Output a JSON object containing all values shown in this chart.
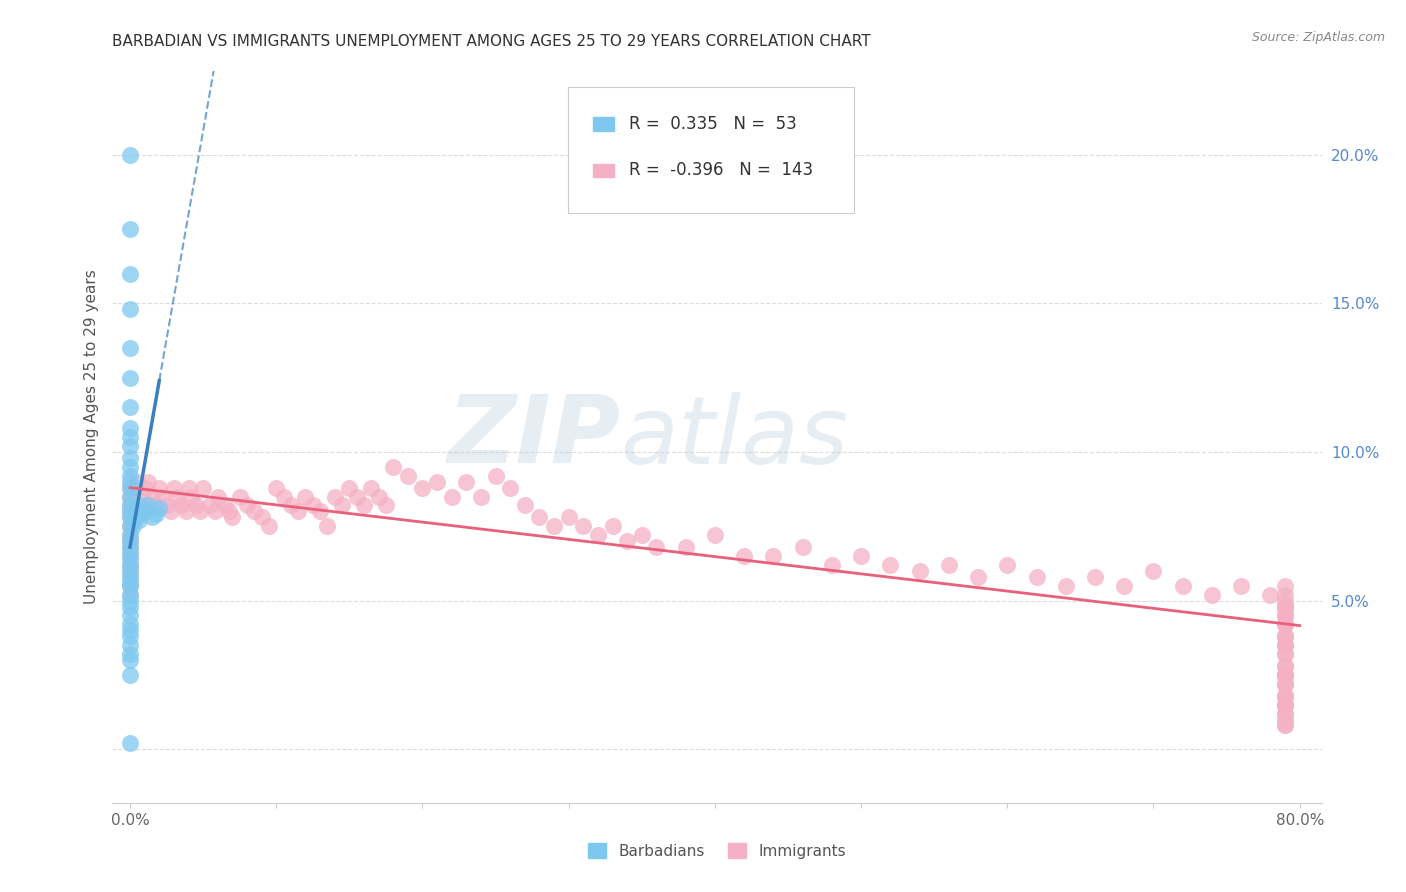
{
  "title": "BARBADIAN VS IMMIGRANTS UNEMPLOYMENT AMONG AGES 25 TO 29 YEARS CORRELATION CHART",
  "source": "Source: ZipAtlas.com",
  "ylabel": "Unemployment Among Ages 25 to 29 years",
  "legend_barbadians_R": "0.335",
  "legend_barbadians_N": "53",
  "legend_immigrants_R": "-0.396",
  "legend_immigrants_N": "143",
  "barbadian_color": "#7ec8f0",
  "immigrant_color": "#f5b0c5",
  "barbadian_line_color": "#3a7fbf",
  "immigrant_line_color": "#e8607a",
  "watermark_color": "#c5dff0",
  "watermark_text": "ZIPatlas",
  "barbadian_slope": 2.8,
  "barbadian_intercept": 0.068,
  "immigrant_slope": -0.058,
  "immigrant_intercept": 0.088,
  "bx": [
    0.0,
    0.0,
    0.0,
    0.0,
    0.0,
    0.0,
    0.0,
    0.0,
    0.0,
    0.0,
    0.0,
    0.0,
    0.0,
    0.0,
    0.0,
    0.0,
    0.0,
    0.0,
    0.0,
    0.0,
    0.0,
    0.0,
    0.0,
    0.0,
    0.0,
    0.0,
    0.0,
    0.0,
    0.0,
    0.0,
    0.0,
    0.0,
    0.0,
    0.0,
    0.0,
    0.0,
    0.0,
    0.0,
    0.0,
    0.0,
    0.0,
    0.0,
    0.002,
    0.004,
    0.005,
    0.006,
    0.007,
    0.008,
    0.01,
    0.012,
    0.015,
    0.018,
    0.02
  ],
  "by": [
    0.2,
    0.175,
    0.16,
    0.148,
    0.135,
    0.125,
    0.115,
    0.108,
    0.105,
    0.102,
    0.098,
    0.095,
    0.092,
    0.09,
    0.088,
    0.085,
    0.082,
    0.08,
    0.078,
    0.075,
    0.072,
    0.07,
    0.068,
    0.066,
    0.064,
    0.062,
    0.06,
    0.058,
    0.056,
    0.055,
    0.052,
    0.05,
    0.048,
    0.045,
    0.042,
    0.04,
    0.038,
    0.035,
    0.032,
    0.03,
    0.025,
    0.002,
    0.075,
    0.078,
    0.08,
    0.077,
    0.082,
    0.079,
    0.08,
    0.082,
    0.078,
    0.079,
    0.081
  ],
  "ix": [
    0.0,
    0.0,
    0.0,
    0.0,
    0.0,
    0.0,
    0.0,
    0.0,
    0.0,
    0.0,
    0.0,
    0.0,
    0.0,
    0.0,
    0.0,
    0.005,
    0.008,
    0.01,
    0.012,
    0.015,
    0.018,
    0.02,
    0.022,
    0.025,
    0.028,
    0.03,
    0.032,
    0.035,
    0.038,
    0.04,
    0.042,
    0.045,
    0.048,
    0.05,
    0.055,
    0.058,
    0.06,
    0.065,
    0.068,
    0.07,
    0.075,
    0.08,
    0.085,
    0.09,
    0.095,
    0.1,
    0.105,
    0.11,
    0.115,
    0.12,
    0.125,
    0.13,
    0.135,
    0.14,
    0.145,
    0.15,
    0.155,
    0.16,
    0.165,
    0.17,
    0.175,
    0.18,
    0.19,
    0.2,
    0.21,
    0.22,
    0.23,
    0.24,
    0.25,
    0.26,
    0.27,
    0.28,
    0.29,
    0.3,
    0.31,
    0.32,
    0.33,
    0.34,
    0.35,
    0.36,
    0.38,
    0.4,
    0.42,
    0.44,
    0.46,
    0.48,
    0.5,
    0.52,
    0.54,
    0.56,
    0.58,
    0.6,
    0.62,
    0.64,
    0.66,
    0.68,
    0.7,
    0.72,
    0.74,
    0.76,
    0.78,
    0.79,
    0.79,
    0.79,
    0.79,
    0.79,
    0.79,
    0.79,
    0.79,
    0.79,
    0.79,
    0.79,
    0.79,
    0.79,
    0.79,
    0.79,
    0.79,
    0.79,
    0.79,
    0.79,
    0.79,
    0.79,
    0.79,
    0.79,
    0.79,
    0.79,
    0.79,
    0.79,
    0.79,
    0.79,
    0.79,
    0.79,
    0.79,
    0.79,
    0.79,
    0.79,
    0.79,
    0.79,
    0.79,
    0.79,
    0.79,
    0.79,
    0.79
  ],
  "iy": [
    0.088,
    0.085,
    0.082,
    0.08,
    0.078,
    0.075,
    0.072,
    0.07,
    0.068,
    0.065,
    0.062,
    0.06,
    0.058,
    0.055,
    0.052,
    0.09,
    0.085,
    0.088,
    0.09,
    0.085,
    0.082,
    0.088,
    0.085,
    0.082,
    0.08,
    0.088,
    0.085,
    0.082,
    0.08,
    0.088,
    0.085,
    0.082,
    0.08,
    0.088,
    0.082,
    0.08,
    0.085,
    0.082,
    0.08,
    0.078,
    0.085,
    0.082,
    0.08,
    0.078,
    0.075,
    0.088,
    0.085,
    0.082,
    0.08,
    0.085,
    0.082,
    0.08,
    0.075,
    0.085,
    0.082,
    0.088,
    0.085,
    0.082,
    0.088,
    0.085,
    0.082,
    0.095,
    0.092,
    0.088,
    0.09,
    0.085,
    0.09,
    0.085,
    0.092,
    0.088,
    0.082,
    0.078,
    0.075,
    0.078,
    0.075,
    0.072,
    0.075,
    0.07,
    0.072,
    0.068,
    0.068,
    0.072,
    0.065,
    0.065,
    0.068,
    0.062,
    0.065,
    0.062,
    0.06,
    0.062,
    0.058,
    0.062,
    0.058,
    0.055,
    0.058,
    0.055,
    0.06,
    0.055,
    0.052,
    0.055,
    0.052,
    0.055,
    0.05,
    0.048,
    0.052,
    0.048,
    0.045,
    0.048,
    0.045,
    0.042,
    0.048,
    0.045,
    0.042,
    0.038,
    0.042,
    0.038,
    0.035,
    0.038,
    0.035,
    0.032,
    0.035,
    0.032,
    0.028,
    0.025,
    0.028,
    0.025,
    0.022,
    0.025,
    0.022,
    0.018,
    0.025,
    0.022,
    0.018,
    0.015,
    0.018,
    0.015,
    0.012,
    0.015,
    0.012,
    0.008,
    0.015,
    0.01,
    0.008
  ]
}
